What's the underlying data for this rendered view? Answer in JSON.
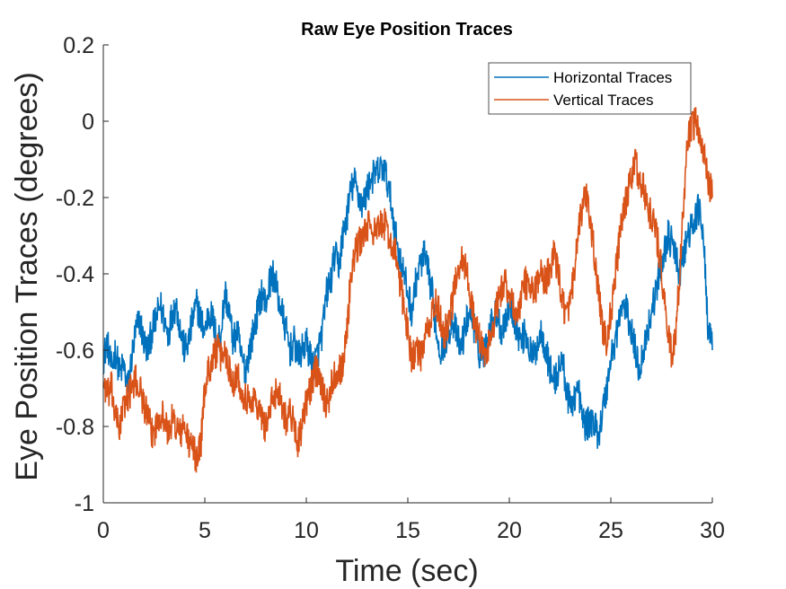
{
  "chart_data": {
    "type": "line",
    "title": "Raw Eye Position Traces",
    "xlabel": "Time (sec)",
    "ylabel": "Eye Position Traces (degrees)",
    "xlim": [
      0,
      30
    ],
    "ylim": [
      -1,
      0.2
    ],
    "xticks": [
      0,
      5,
      10,
      15,
      20,
      25,
      30
    ],
    "yticks": [
      0.2,
      0,
      -0.2,
      -0.4,
      -0.6,
      -0.8,
      -1
    ],
    "xtick_labels": [
      "0",
      "5",
      "10",
      "15",
      "20",
      "25",
      "30"
    ],
    "ytick_labels": [
      "0.2",
      "0",
      "-0.2",
      "-0.4",
      "-0.6",
      "-0.8",
      "-1"
    ],
    "grid": false,
    "legend_position": "top-right",
    "series": [
      {
        "name": "Horizontal Traces",
        "color": "#0072BD",
        "points": [
          [
            0.0,
            -0.62
          ],
          [
            0.2,
            -0.58
          ],
          [
            0.4,
            -0.65
          ],
          [
            0.6,
            -0.6
          ],
          [
            0.8,
            -0.66
          ],
          [
            1.0,
            -0.64
          ],
          [
            1.2,
            -0.7
          ],
          [
            1.4,
            -0.62
          ],
          [
            1.6,
            -0.55
          ],
          [
            1.8,
            -0.52
          ],
          [
            2.0,
            -0.58
          ],
          [
            2.2,
            -0.6
          ],
          [
            2.4,
            -0.55
          ],
          [
            2.6,
            -0.52
          ],
          [
            2.8,
            -0.48
          ],
          [
            3.0,
            -0.52
          ],
          [
            3.2,
            -0.56
          ],
          [
            3.4,
            -0.5
          ],
          [
            3.6,
            -0.48
          ],
          [
            3.8,
            -0.55
          ],
          [
            4.0,
            -0.6
          ],
          [
            4.2,
            -0.58
          ],
          [
            4.4,
            -0.52
          ],
          [
            4.6,
            -0.48
          ],
          [
            4.8,
            -0.52
          ],
          [
            5.0,
            -0.55
          ],
          [
            5.2,
            -0.5
          ],
          [
            5.4,
            -0.52
          ],
          [
            5.6,
            -0.58
          ],
          [
            5.8,
            -0.55
          ],
          [
            6.0,
            -0.45
          ],
          [
            6.2,
            -0.5
          ],
          [
            6.4,
            -0.58
          ],
          [
            6.6,
            -0.55
          ],
          [
            6.8,
            -0.62
          ],
          [
            7.0,
            -0.65
          ],
          [
            7.2,
            -0.6
          ],
          [
            7.4,
            -0.55
          ],
          [
            7.6,
            -0.5
          ],
          [
            7.8,
            -0.45
          ],
          [
            8.0,
            -0.48
          ],
          [
            8.2,
            -0.42
          ],
          [
            8.4,
            -0.4
          ],
          [
            8.6,
            -0.46
          ],
          [
            8.8,
            -0.5
          ],
          [
            9.0,
            -0.55
          ],
          [
            9.2,
            -0.6
          ],
          [
            9.4,
            -0.58
          ],
          [
            9.6,
            -0.62
          ],
          [
            9.8,
            -0.6
          ],
          [
            10.0,
            -0.58
          ],
          [
            10.2,
            -0.62
          ],
          [
            10.4,
            -0.64
          ],
          [
            10.6,
            -0.6
          ],
          [
            10.8,
            -0.55
          ],
          [
            11.0,
            -0.45
          ],
          [
            11.2,
            -0.42
          ],
          [
            11.4,
            -0.35
          ],
          [
            11.6,
            -0.38
          ],
          [
            11.8,
            -0.3
          ],
          [
            12.0,
            -0.25
          ],
          [
            12.2,
            -0.18
          ],
          [
            12.4,
            -0.16
          ],
          [
            12.6,
            -0.2
          ],
          [
            12.8,
            -0.22
          ],
          [
            13.0,
            -0.18
          ],
          [
            13.2,
            -0.15
          ],
          [
            13.4,
            -0.14
          ],
          [
            13.6,
            -0.13
          ],
          [
            13.8,
            -0.12
          ],
          [
            14.0,
            -0.16
          ],
          [
            14.2,
            -0.22
          ],
          [
            14.4,
            -0.3
          ],
          [
            14.6,
            -0.36
          ],
          [
            14.8,
            -0.4
          ],
          [
            15.0,
            -0.45
          ],
          [
            15.2,
            -0.5
          ],
          [
            15.4,
            -0.42
          ],
          [
            15.6,
            -0.38
          ],
          [
            15.8,
            -0.35
          ],
          [
            16.0,
            -0.4
          ],
          [
            16.2,
            -0.45
          ],
          [
            16.4,
            -0.55
          ],
          [
            16.6,
            -0.6
          ],
          [
            16.8,
            -0.58
          ],
          [
            17.0,
            -0.55
          ],
          [
            17.2,
            -0.52
          ],
          [
            17.4,
            -0.56
          ],
          [
            17.6,
            -0.6
          ],
          [
            17.8,
            -0.55
          ],
          [
            18.0,
            -0.5
          ],
          [
            18.2,
            -0.52
          ],
          [
            18.4,
            -0.58
          ],
          [
            18.6,
            -0.62
          ],
          [
            18.8,
            -0.6
          ],
          [
            19.0,
            -0.55
          ],
          [
            19.2,
            -0.52
          ],
          [
            19.4,
            -0.5
          ],
          [
            19.6,
            -0.55
          ],
          [
            19.8,
            -0.52
          ],
          [
            20.0,
            -0.48
          ],
          [
            20.2,
            -0.5
          ],
          [
            20.4,
            -0.55
          ],
          [
            20.6,
            -0.58
          ],
          [
            20.8,
            -0.55
          ],
          [
            21.0,
            -0.6
          ],
          [
            21.2,
            -0.62
          ],
          [
            21.4,
            -0.58
          ],
          [
            21.6,
            -0.55
          ],
          [
            21.8,
            -0.6
          ],
          [
            22.0,
            -0.65
          ],
          [
            22.2,
            -0.68
          ],
          [
            22.4,
            -0.66
          ],
          [
            22.6,
            -0.62
          ],
          [
            22.8,
            -0.7
          ],
          [
            23.0,
            -0.75
          ],
          [
            23.2,
            -0.72
          ],
          [
            23.4,
            -0.7
          ],
          [
            23.6,
            -0.78
          ],
          [
            23.8,
            -0.8
          ],
          [
            24.0,
            -0.78
          ],
          [
            24.2,
            -0.8
          ],
          [
            24.4,
            -0.82
          ],
          [
            24.6,
            -0.76
          ],
          [
            24.8,
            -0.7
          ],
          [
            25.0,
            -0.62
          ],
          [
            25.2,
            -0.58
          ],
          [
            25.4,
            -0.52
          ],
          [
            25.6,
            -0.48
          ],
          [
            25.8,
            -0.5
          ],
          [
            26.0,
            -0.55
          ],
          [
            26.2,
            -0.6
          ],
          [
            26.4,
            -0.65
          ],
          [
            26.6,
            -0.6
          ],
          [
            26.8,
            -0.55
          ],
          [
            27.0,
            -0.5
          ],
          [
            27.2,
            -0.45
          ],
          [
            27.4,
            -0.4
          ],
          [
            27.6,
            -0.35
          ],
          [
            27.8,
            -0.3
          ],
          [
            28.0,
            -0.32
          ],
          [
            28.2,
            -0.36
          ],
          [
            28.4,
            -0.4
          ],
          [
            28.6,
            -0.35
          ],
          [
            28.8,
            -0.3
          ],
          [
            29.0,
            -0.28
          ],
          [
            29.2,
            -0.25
          ],
          [
            29.4,
            -0.22
          ],
          [
            29.6,
            -0.35
          ],
          [
            29.8,
            -0.55
          ],
          [
            30.0,
            -0.6
          ]
        ]
      },
      {
        "name": "Vertical Traces",
        "color": "#D95319",
        "points": [
          [
            0.0,
            -0.68
          ],
          [
            0.2,
            -0.72
          ],
          [
            0.4,
            -0.7
          ],
          [
            0.6,
            -0.78
          ],
          [
            0.8,
            -0.8
          ],
          [
            1.0,
            -0.75
          ],
          [
            1.2,
            -0.72
          ],
          [
            1.4,
            -0.7
          ],
          [
            1.6,
            -0.68
          ],
          [
            1.8,
            -0.7
          ],
          [
            2.0,
            -0.74
          ],
          [
            2.2,
            -0.78
          ],
          [
            2.4,
            -0.82
          ],
          [
            2.6,
            -0.8
          ],
          [
            2.8,
            -0.76
          ],
          [
            3.0,
            -0.78
          ],
          [
            3.2,
            -0.82
          ],
          [
            3.4,
            -0.78
          ],
          [
            3.6,
            -0.8
          ],
          [
            3.8,
            -0.82
          ],
          [
            4.0,
            -0.8
          ],
          [
            4.2,
            -0.84
          ],
          [
            4.4,
            -0.86
          ],
          [
            4.6,
            -0.88
          ],
          [
            4.8,
            -0.85
          ],
          [
            5.0,
            -0.7
          ],
          [
            5.2,
            -0.65
          ],
          [
            5.4,
            -0.62
          ],
          [
            5.6,
            -0.6
          ],
          [
            5.8,
            -0.62
          ],
          [
            6.0,
            -0.6
          ],
          [
            6.2,
            -0.65
          ],
          [
            6.4,
            -0.68
          ],
          [
            6.6,
            -0.66
          ],
          [
            6.8,
            -0.7
          ],
          [
            7.0,
            -0.72
          ],
          [
            7.2,
            -0.74
          ],
          [
            7.4,
            -0.72
          ],
          [
            7.6,
            -0.75
          ],
          [
            7.8,
            -0.78
          ],
          [
            8.0,
            -0.8
          ],
          [
            8.2,
            -0.76
          ],
          [
            8.4,
            -0.72
          ],
          [
            8.6,
            -0.7
          ],
          [
            8.8,
            -0.74
          ],
          [
            9.0,
            -0.78
          ],
          [
            9.2,
            -0.76
          ],
          [
            9.4,
            -0.8
          ],
          [
            9.6,
            -0.84
          ],
          [
            9.8,
            -0.8
          ],
          [
            10.0,
            -0.74
          ],
          [
            10.2,
            -0.7
          ],
          [
            10.4,
            -0.66
          ],
          [
            10.6,
            -0.65
          ],
          [
            10.8,
            -0.7
          ],
          [
            11.0,
            -0.75
          ],
          [
            11.2,
            -0.7
          ],
          [
            11.4,
            -0.66
          ],
          [
            11.6,
            -0.65
          ],
          [
            11.8,
            -0.64
          ],
          [
            12.0,
            -0.55
          ],
          [
            12.2,
            -0.4
          ],
          [
            12.4,
            -0.35
          ],
          [
            12.6,
            -0.32
          ],
          [
            12.8,
            -0.3
          ],
          [
            13.0,
            -0.28
          ],
          [
            13.2,
            -0.27
          ],
          [
            13.4,
            -0.3
          ],
          [
            13.6,
            -0.28
          ],
          [
            13.8,
            -0.26
          ],
          [
            14.0,
            -0.3
          ],
          [
            14.2,
            -0.32
          ],
          [
            14.4,
            -0.35
          ],
          [
            14.6,
            -0.42
          ],
          [
            14.8,
            -0.48
          ],
          [
            15.0,
            -0.55
          ],
          [
            15.2,
            -0.62
          ],
          [
            15.4,
            -0.6
          ],
          [
            15.6,
            -0.62
          ],
          [
            15.8,
            -0.58
          ],
          [
            16.0,
            -0.55
          ],
          [
            16.2,
            -0.5
          ],
          [
            16.4,
            -0.48
          ],
          [
            16.6,
            -0.52
          ],
          [
            16.8,
            -0.56
          ],
          [
            17.0,
            -0.52
          ],
          [
            17.2,
            -0.48
          ],
          [
            17.4,
            -0.4
          ],
          [
            17.6,
            -0.36
          ],
          [
            17.8,
            -0.38
          ],
          [
            18.0,
            -0.42
          ],
          [
            18.2,
            -0.5
          ],
          [
            18.4,
            -0.55
          ],
          [
            18.6,
            -0.58
          ],
          [
            18.8,
            -0.62
          ],
          [
            19.0,
            -0.58
          ],
          [
            19.2,
            -0.55
          ],
          [
            19.4,
            -0.48
          ],
          [
            19.6,
            -0.45
          ],
          [
            19.8,
            -0.42
          ],
          [
            20.0,
            -0.45
          ],
          [
            20.2,
            -0.48
          ],
          [
            20.4,
            -0.52
          ],
          [
            20.6,
            -0.46
          ],
          [
            20.8,
            -0.42
          ],
          [
            21.0,
            -0.44
          ],
          [
            21.2,
            -0.45
          ],
          [
            21.4,
            -0.42
          ],
          [
            21.6,
            -0.4
          ],
          [
            21.8,
            -0.42
          ],
          [
            22.0,
            -0.38
          ],
          [
            22.2,
            -0.35
          ],
          [
            22.4,
            -0.4
          ],
          [
            22.6,
            -0.45
          ],
          [
            22.8,
            -0.52
          ],
          [
            23.0,
            -0.48
          ],
          [
            23.2,
            -0.4
          ],
          [
            23.4,
            -0.3
          ],
          [
            23.6,
            -0.22
          ],
          [
            23.8,
            -0.2
          ],
          [
            24.0,
            -0.28
          ],
          [
            24.2,
            -0.35
          ],
          [
            24.4,
            -0.45
          ],
          [
            24.6,
            -0.55
          ],
          [
            24.8,
            -0.58
          ],
          [
            25.0,
            -0.5
          ],
          [
            25.2,
            -0.42
          ],
          [
            25.4,
            -0.32
          ],
          [
            25.6,
            -0.25
          ],
          [
            25.8,
            -0.2
          ],
          [
            26.0,
            -0.15
          ],
          [
            26.2,
            -0.1
          ],
          [
            26.4,
            -0.15
          ],
          [
            26.6,
            -0.18
          ],
          [
            26.8,
            -0.22
          ],
          [
            27.0,
            -0.25
          ],
          [
            27.2,
            -0.28
          ],
          [
            27.4,
            -0.35
          ],
          [
            27.6,
            -0.45
          ],
          [
            27.8,
            -0.55
          ],
          [
            28.0,
            -0.62
          ],
          [
            28.2,
            -0.55
          ],
          [
            28.4,
            -0.4
          ],
          [
            28.6,
            -0.2
          ],
          [
            28.8,
            -0.05
          ],
          [
            29.0,
            -0.02
          ],
          [
            29.2,
            0.0
          ],
          [
            29.4,
            -0.03
          ],
          [
            29.6,
            -0.1
          ],
          [
            29.8,
            -0.15
          ],
          [
            30.0,
            -0.2
          ]
        ]
      }
    ]
  }
}
